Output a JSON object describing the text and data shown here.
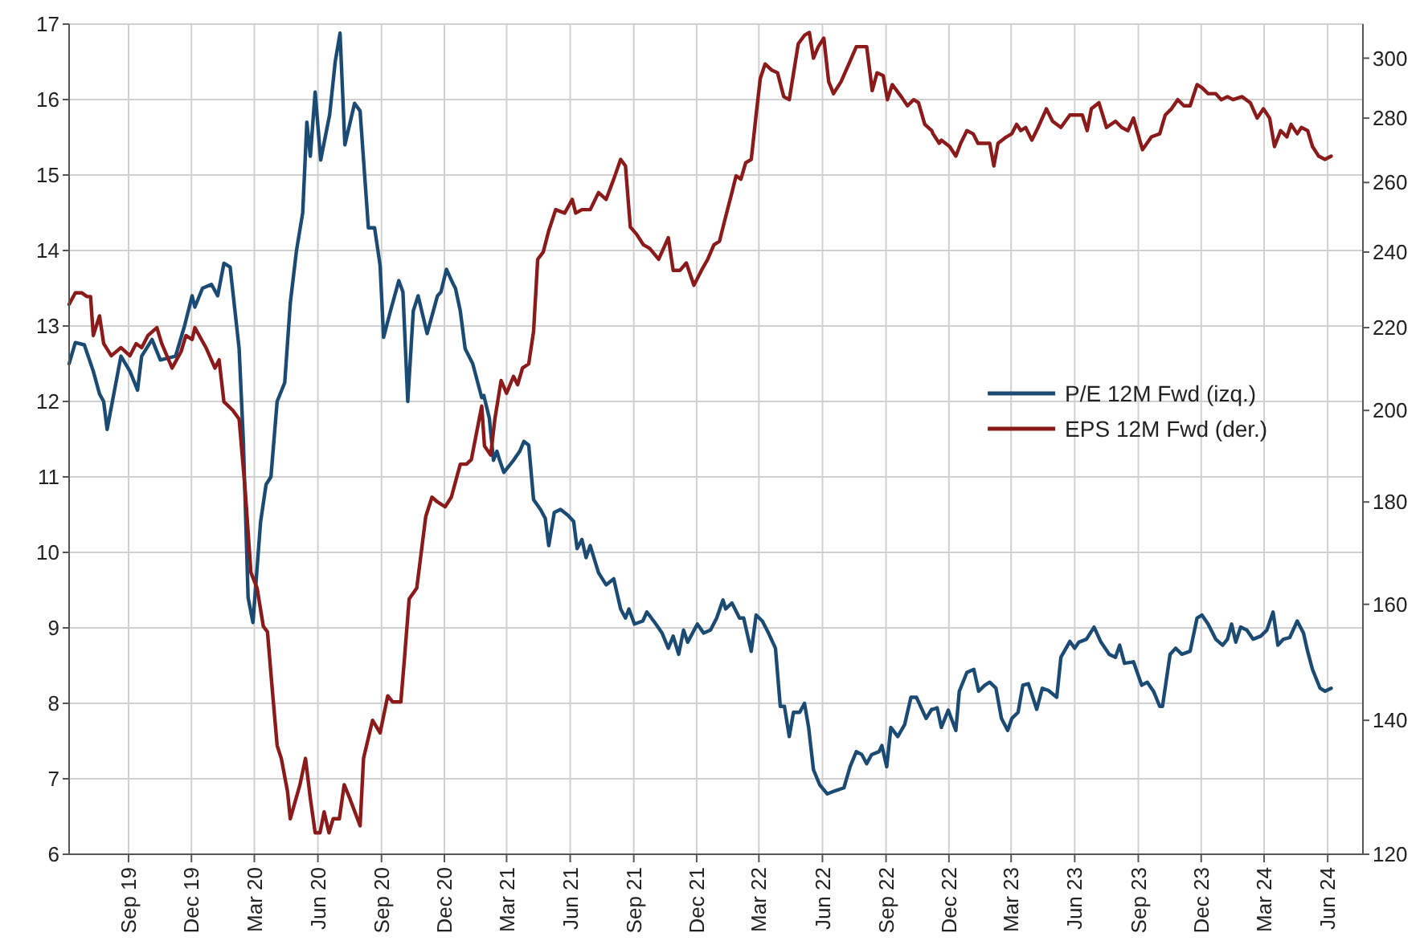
{
  "chart_data": {
    "type": "line",
    "legend": "right",
    "grid": true,
    "log": "y2",
    "line_style": "solid",
    "marker": "none",
    "xlim": [
      "2019-06-07",
      "2024-07-22"
    ],
    "xticks": [
      {
        "value": "2019-09-01",
        "label": "Sep 19"
      },
      {
        "value": "2019-12-01",
        "label": "Dec 19"
      },
      {
        "value": "2020-03-01",
        "label": "Mar 20"
      },
      {
        "value": "2020-06-01",
        "label": "Jun 20"
      },
      {
        "value": "2020-09-01",
        "label": "Sep 20"
      },
      {
        "value": "2020-12-01",
        "label": "Dec 20"
      },
      {
        "value": "2021-03-01",
        "label": "Mar 21"
      },
      {
        "value": "2021-06-01",
        "label": "Jun 21"
      },
      {
        "value": "2021-09-01",
        "label": "Sep 21"
      },
      {
        "value": "2021-12-01",
        "label": "Dec 21"
      },
      {
        "value": "2022-03-01",
        "label": "Mar 22"
      },
      {
        "value": "2022-06-01",
        "label": "Jun 22"
      },
      {
        "value": "2022-09-01",
        "label": "Sep 22"
      },
      {
        "value": "2022-12-01",
        "label": "Dec 22"
      },
      {
        "value": "2023-03-01",
        "label": "Mar 23"
      },
      {
        "value": "2023-06-01",
        "label": "Jun 23"
      },
      {
        "value": "2023-09-01",
        "label": "Sep 23"
      },
      {
        "value": "2023-12-01",
        "label": "Dec 23"
      },
      {
        "value": "2024-03-01",
        "label": "Mar 24"
      },
      {
        "value": "2024-06-01",
        "label": "Jun 24"
      }
    ],
    "ylim": [
      6,
      17
    ],
    "yticks": [
      6,
      7,
      8,
      9,
      10,
      11,
      12,
      13,
      14,
      15,
      16,
      17
    ],
    "y2lim": [
      120,
      312
    ],
    "y2ticks": [
      120,
      140,
      160,
      180,
      200,
      220,
      240,
      260,
      280,
      300
    ],
    "series": [
      {
        "name": "P/E 12M Fwd (izq.)",
        "color": "#1b4a72",
        "x": [
          "2019-06-07",
          "2019-06-16",
          "2019-06-29",
          "2019-07-12",
          "2019-07-21",
          "2019-07-27",
          "2019-08-01",
          "2019-08-21",
          "2019-09-03",
          "2019-09-14",
          "2019-09-20",
          "2019-10-05",
          "2019-10-17",
          "2019-11-08",
          "2019-11-21",
          "2019-12-02",
          "2019-12-06",
          "2019-12-17",
          "2019-12-30",
          "2020-01-08",
          "2020-01-17",
          "2020-01-26",
          "2020-02-08",
          "2020-02-14",
          "2020-02-21",
          "2020-02-28",
          "2020-03-10",
          "2020-03-18",
          "2020-03-25",
          "2020-04-03",
          "2020-04-14",
          "2020-04-22",
          "2020-05-01",
          "2020-05-10",
          "2020-05-16",
          "2020-05-21",
          "2020-05-28",
          "2020-06-05",
          "2020-06-18",
          "2020-06-26",
          "2020-07-03",
          "2020-07-10",
          "2020-07-24",
          "2020-08-01",
          "2020-08-13",
          "2020-08-22",
          "2020-08-30",
          "2020-09-04",
          "2020-09-14",
          "2020-09-26",
          "2020-10-02",
          "2020-10-09",
          "2020-10-17",
          "2020-10-24",
          "2020-11-06",
          "2020-11-21",
          "2020-11-26",
          "2020-12-04",
          "2020-12-14",
          "2020-12-17",
          "2020-12-24",
          "2020-12-31",
          "2021-01-11",
          "2021-01-24",
          "2021-01-27",
          "2021-02-04",
          "2021-02-10",
          "2021-02-15",
          "2021-02-19",
          "2021-02-25",
          "2021-03-11",
          "2021-03-20",
          "2021-03-26",
          "2021-04-02",
          "2021-04-09",
          "2021-04-19",
          "2021-04-26",
          "2021-05-01",
          "2021-05-09",
          "2021-05-18",
          "2021-05-29",
          "2021-06-06",
          "2021-06-11",
          "2021-06-18",
          "2021-06-24",
          "2021-06-30",
          "2021-07-12",
          "2021-07-23",
          "2021-08-03",
          "2021-08-13",
          "2021-08-20",
          "2021-08-25",
          "2021-09-02",
          "2021-09-14",
          "2021-09-20",
          "2021-10-03",
          "2021-10-12",
          "2021-10-21",
          "2021-10-28",
          "2021-11-05",
          "2021-11-12",
          "2021-11-18",
          "2021-12-02",
          "2021-12-11",
          "2021-12-21",
          "2021-12-30",
          "2022-01-08",
          "2022-01-12",
          "2022-01-21",
          "2022-02-01",
          "2022-02-07",
          "2022-02-18",
          "2022-02-25",
          "2022-03-06",
          "2022-03-15",
          "2022-03-25",
          "2022-04-01",
          "2022-04-07",
          "2022-04-14",
          "2022-04-20",
          "2022-04-29",
          "2022-05-06",
          "2022-05-12",
          "2022-05-19",
          "2022-05-28",
          "2022-06-08",
          "2022-06-19",
          "2022-07-02",
          "2022-07-11",
          "2022-07-20",
          "2022-07-28",
          "2022-08-04",
          "2022-08-11",
          "2022-08-22",
          "2022-08-26",
          "2022-09-02",
          "2022-09-08",
          "2022-09-18",
          "2022-09-28",
          "2022-10-07",
          "2022-10-15",
          "2022-10-29",
          "2022-11-06",
          "2022-11-08",
          "2022-11-14",
          "2022-11-20",
          "2022-11-30",
          "2022-12-11",
          "2022-12-16",
          "2022-12-27",
          "2023-01-06",
          "2023-01-13",
          "2023-01-22",
          "2023-01-29",
          "2023-02-07",
          "2023-02-15",
          "2023-02-24",
          "2023-03-02",
          "2023-03-11",
          "2023-03-18",
          "2023-03-26",
          "2023-04-07",
          "2023-04-15",
          "2023-04-24",
          "2023-05-06",
          "2023-05-12",
          "2023-05-25",
          "2023-06-01",
          "2023-06-07",
          "2023-06-18",
          "2023-06-29",
          "2023-07-09",
          "2023-07-21",
          "2023-07-30",
          "2023-08-05",
          "2023-08-12",
          "2023-08-25",
          "2023-09-06",
          "2023-09-14",
          "2023-09-23",
          "2023-10-02",
          "2023-10-06",
          "2023-10-17",
          "2023-10-25",
          "2023-11-03",
          "2023-11-15",
          "2023-11-25",
          "2023-12-02",
          "2023-12-11",
          "2023-12-22",
          "2024-01-01",
          "2024-01-08",
          "2024-01-14",
          "2024-01-20",
          "2024-01-27",
          "2024-02-05",
          "2024-02-14",
          "2024-02-25",
          "2024-03-05",
          "2024-03-14",
          "2024-03-21",
          "2024-03-29",
          "2024-04-07",
          "2024-04-18",
          "2024-04-27",
          "2024-05-03",
          "2024-05-10",
          "2024-05-21",
          "2024-05-28",
          "2024-06-06"
        ],
        "values": [
          12.5,
          12.78,
          12.75,
          12.4,
          12.1,
          12.0,
          11.63,
          12.6,
          12.4,
          12.15,
          12.6,
          12.82,
          12.55,
          12.6,
          13.0,
          13.4,
          13.25,
          13.5,
          13.55,
          13.4,
          13.83,
          13.78,
          12.7,
          11.5,
          9.4,
          9.07,
          10.4,
          10.9,
          11.0,
          12.0,
          12.25,
          13.3,
          14.0,
          14.5,
          15.7,
          15.25,
          16.1,
          15.2,
          15.8,
          16.5,
          16.88,
          15.4,
          15.95,
          15.85,
          14.3,
          14.3,
          13.8,
          12.85,
          13.2,
          13.6,
          13.45,
          12.0,
          13.2,
          13.4,
          12.9,
          13.4,
          13.45,
          13.75,
          13.55,
          13.5,
          13.2,
          12.7,
          12.5,
          12.05,
          12.08,
          11.78,
          11.22,
          11.34,
          11.22,
          11.06,
          11.22,
          11.34,
          11.47,
          11.42,
          10.7,
          10.57,
          10.45,
          10.09,
          10.53,
          10.57,
          10.49,
          10.41,
          10.05,
          10.17,
          9.93,
          10.09,
          9.73,
          9.57,
          9.65,
          9.25,
          9.13,
          9.25,
          9.05,
          9.09,
          9.21,
          9.05,
          8.93,
          8.73,
          8.89,
          8.65,
          8.97,
          8.81,
          9.05,
          8.93,
          8.97,
          9.13,
          9.37,
          9.25,
          9.33,
          9.13,
          9.13,
          8.69,
          9.17,
          9.09,
          8.93,
          8.73,
          7.96,
          7.96,
          7.56,
          7.88,
          7.88,
          8.0,
          7.68,
          7.12,
          6.92,
          6.8,
          6.84,
          6.88,
          7.16,
          7.36,
          7.32,
          7.2,
          7.32,
          7.36,
          7.44,
          7.16,
          7.68,
          7.56,
          7.72,
          8.08,
          8.08,
          7.8,
          7.92,
          7.92,
          7.94,
          7.68,
          7.91,
          7.64,
          8.16,
          8.41,
          8.45,
          8.16,
          8.24,
          8.28,
          8.2,
          7.8,
          7.64,
          7.8,
          7.88,
          8.24,
          8.26,
          7.92,
          8.2,
          8.17,
          8.08,
          8.61,
          8.82,
          8.73,
          8.81,
          8.85,
          9.01,
          8.81,
          8.65,
          8.61,
          8.77,
          8.53,
          8.55,
          8.24,
          8.28,
          8.16,
          7.96,
          7.96,
          8.65,
          8.73,
          8.65,
          8.69,
          9.13,
          9.17,
          9.05,
          8.85,
          8.77,
          8.85,
          9.05,
          8.81,
          9.01,
          8.97,
          8.85,
          8.89,
          8.97,
          9.21,
          8.77,
          8.85,
          8.87,
          9.09,
          8.93,
          8.69,
          8.45,
          8.2,
          8.16,
          8.2
        ]
      },
      {
        "name": "EPS 12M Fwd (der.)",
        "color": "#8b1a1a",
        "axis": "y2",
        "x": [
          "2019-06-07",
          "2019-06-16",
          "2019-06-25",
          "2019-07-03",
          "2019-07-08",
          "2019-07-12",
          "2019-07-21",
          "2019-07-27",
          "2019-08-07",
          "2019-08-21",
          "2019-09-03",
          "2019-09-12",
          "2019-09-20",
          "2019-09-29",
          "2019-10-12",
          "2019-10-19",
          "2019-11-03",
          "2019-11-16",
          "2019-11-23",
          "2019-12-02",
          "2019-12-06",
          "2019-12-22",
          "2020-01-04",
          "2020-01-10",
          "2020-01-17",
          "2020-01-30",
          "2020-02-08",
          "2020-02-17",
          "2020-02-25",
          "2020-03-05",
          "2020-03-14",
          "2020-03-20",
          "2020-03-27",
          "2020-04-03",
          "2020-04-09",
          "2020-04-18",
          "2020-04-22",
          "2020-05-06",
          "2020-05-14",
          "2020-05-21",
          "2020-05-28",
          "2020-06-04",
          "2020-06-10",
          "2020-06-17",
          "2020-06-23",
          "2020-07-02",
          "2020-07-09",
          "2020-07-17",
          "2020-08-01",
          "2020-08-06",
          "2020-08-19",
          "2020-08-30",
          "2020-09-10",
          "2020-09-17",
          "2020-09-29",
          "2020-10-04",
          "2020-10-11",
          "2020-10-22",
          "2020-11-04",
          "2020-11-13",
          "2020-11-21",
          "2020-12-02",
          "2020-12-11",
          "2020-12-24",
          "2021-01-02",
          "2021-01-09",
          "2021-01-24",
          "2021-01-28",
          "2021-02-06",
          "2021-02-12",
          "2021-02-21",
          "2021-03-01",
          "2021-03-11",
          "2021-03-17",
          "2021-03-24",
          "2021-04-02",
          "2021-04-09",
          "2021-04-15",
          "2021-04-23",
          "2021-05-01",
          "2021-05-11",
          "2021-05-24",
          "2021-06-04",
          "2021-06-09",
          "2021-06-18",
          "2021-06-30",
          "2021-07-12",
          "2021-07-23",
          "2021-08-03",
          "2021-08-13",
          "2021-08-20",
          "2021-08-27",
          "2021-09-05",
          "2021-09-15",
          "2021-09-24",
          "2021-10-07",
          "2021-10-21",
          "2021-10-28",
          "2021-11-07",
          "2021-11-16",
          "2021-11-27",
          "2021-12-08",
          "2021-12-17",
          "2021-12-26",
          "2022-01-03",
          "2022-01-12",
          "2022-01-21",
          "2022-01-27",
          "2022-02-03",
          "2022-02-10",
          "2022-02-18",
          "2022-02-25",
          "2022-03-03",
          "2022-03-10",
          "2022-03-19",
          "2022-03-28",
          "2022-04-06",
          "2022-04-14",
          "2022-04-27",
          "2022-05-06",
          "2022-05-13",
          "2022-05-19",
          "2022-05-26",
          "2022-06-03",
          "2022-06-10",
          "2022-06-17",
          "2022-06-28",
          "2022-07-11",
          "2022-07-20",
          "2022-08-04",
          "2022-08-12",
          "2022-08-19",
          "2022-08-28",
          "2022-09-03",
          "2022-09-10",
          "2022-09-23",
          "2022-10-02",
          "2022-10-11",
          "2022-10-18",
          "2022-10-27",
          "2022-11-06",
          "2022-11-08",
          "2022-11-17",
          "2022-11-20",
          "2022-12-02",
          "2022-12-11",
          "2022-12-18",
          "2022-12-27",
          "2023-01-05",
          "2023-01-12",
          "2023-01-22",
          "2023-01-29",
          "2023-02-04",
          "2023-02-10",
          "2023-02-22",
          "2023-03-02",
          "2023-03-09",
          "2023-03-15",
          "2023-03-22",
          "2023-03-31",
          "2023-04-09",
          "2023-04-21",
          "2023-04-30",
          "2023-05-12",
          "2023-05-25",
          "2023-06-03",
          "2023-06-12",
          "2023-06-19",
          "2023-06-25",
          "2023-07-06",
          "2023-07-17",
          "2023-07-30",
          "2023-08-08",
          "2023-08-17",
          "2023-08-25",
          "2023-09-07",
          "2023-09-20",
          "2023-10-02",
          "2023-10-10",
          "2023-10-19",
          "2023-10-28",
          "2023-11-06",
          "2023-11-15",
          "2023-11-25",
          "2023-12-02",
          "2023-12-11",
          "2023-12-22",
          "2023-12-30",
          "2024-01-08",
          "2024-01-16",
          "2024-01-29",
          "2024-02-10",
          "2024-02-20",
          "2024-02-29",
          "2024-03-09",
          "2024-03-16",
          "2024-03-25",
          "2024-04-03",
          "2024-04-09",
          "2024-04-18",
          "2024-04-24",
          "2024-05-03",
          "2024-05-10",
          "2024-05-19",
          "2024-05-28",
          "2024-06-06"
        ],
        "values": [
          226,
          229,
          229,
          228,
          228,
          218,
          223,
          216,
          213,
          215,
          213,
          216,
          215,
          218,
          220,
          216,
          210,
          214,
          218,
          217,
          220,
          215,
          210,
          212,
          202,
          200,
          198,
          182,
          166,
          163,
          156,
          155,
          145,
          136,
          134,
          129,
          125,
          130,
          134,
          128,
          123,
          123,
          126,
          123,
          125,
          125,
          130,
          128,
          124,
          134,
          140,
          138,
          144,
          143,
          143,
          150,
          161,
          163,
          177,
          181,
          180,
          179,
          181,
          188,
          188,
          189,
          201,
          192,
          190,
          198,
          207,
          204,
          208,
          206,
          210,
          211,
          219,
          238,
          240,
          246,
          252,
          251,
          255,
          251,
          252,
          252,
          257,
          255,
          261,
          267,
          265,
          247,
          245,
          242,
          241,
          238,
          244,
          235,
          235,
          237,
          231,
          235,
          238,
          242,
          243,
          250,
          257,
          262,
          261,
          266,
          267,
          281,
          293,
          298,
          296,
          295,
          287,
          286,
          305,
          308,
          309,
          300,
          304,
          307,
          292,
          288,
          292,
          299,
          304,
          304,
          289,
          295,
          294,
          286,
          291,
          287,
          284,
          286,
          285,
          278,
          276,
          275,
          272,
          273,
          271,
          268,
          272,
          276,
          275,
          272,
          272,
          272,
          265,
          272,
          274,
          275,
          278,
          276,
          277,
          273,
          277,
          283,
          279,
          277,
          281,
          281,
          281,
          276,
          283,
          285,
          277,
          279,
          277,
          276,
          280,
          270,
          274,
          275,
          281,
          283,
          286,
          284,
          284,
          291,
          290,
          288,
          288,
          286,
          287,
          286,
          287,
          285,
          280,
          283,
          280,
          271,
          276,
          274,
          278,
          275,
          277,
          276,
          271,
          268,
          267,
          268
        ]
      }
    ]
  }
}
